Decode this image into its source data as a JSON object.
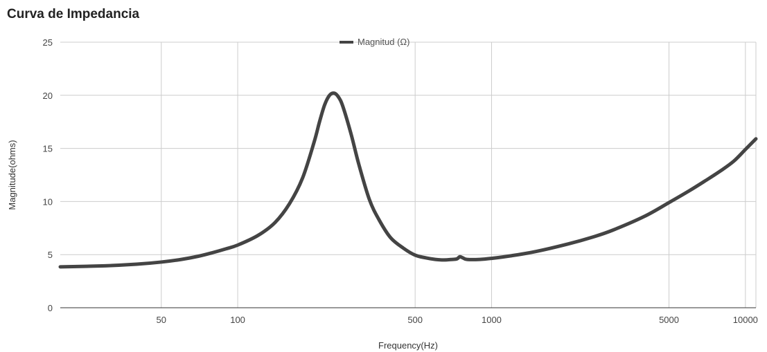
{
  "chart_data": {
    "type": "line",
    "title": "Curva de Impedancia",
    "xlabel": "Frequency(Hz)",
    "ylabel": "Magnitude(ohms)",
    "x_scale": "log",
    "xlim": [
      20,
      11000
    ],
    "ylim": [
      0,
      25
    ],
    "x_ticks": [
      50,
      100,
      500,
      1000,
      5000,
      10000
    ],
    "x_tick_labels": [
      "50",
      "100",
      "500",
      "1000",
      "5000",
      "10000"
    ],
    "y_ticks": [
      0,
      5,
      10,
      15,
      20,
      25
    ],
    "y_tick_labels": [
      "0",
      "5",
      "10",
      "15",
      "20",
      "25"
    ],
    "grid": true,
    "legend_position": "top-center",
    "line_color": "#444444",
    "series": [
      {
        "name": "Magnitud (Ω)",
        "x": [
          20,
          30,
          40,
          50,
          60,
          70,
          80,
          90,
          100,
          120,
          140,
          160,
          180,
          200,
          210,
          220,
          230,
          240,
          250,
          260,
          280,
          300,
          330,
          360,
          400,
          450,
          500,
          550,
          600,
          650,
          700,
          730,
          750,
          770,
          800,
          900,
          1000,
          1200,
          1500,
          2000,
          2500,
          3000,
          4000,
          5000,
          6000,
          7000,
          8000,
          9000,
          10000,
          11000
        ],
        "y": [
          3.85,
          3.95,
          4.1,
          4.3,
          4.55,
          4.85,
          5.2,
          5.55,
          5.9,
          6.8,
          8.0,
          9.8,
          12.2,
          15.6,
          17.5,
          19.1,
          20.0,
          20.2,
          19.8,
          18.9,
          16.3,
          13.5,
          10.2,
          8.3,
          6.6,
          5.6,
          4.95,
          4.7,
          4.55,
          4.5,
          4.55,
          4.6,
          4.8,
          4.7,
          4.55,
          4.55,
          4.65,
          4.9,
          5.3,
          6.0,
          6.65,
          7.3,
          8.6,
          9.9,
          11.0,
          12.0,
          12.9,
          13.8,
          14.9,
          15.9
        ]
      }
    ]
  }
}
